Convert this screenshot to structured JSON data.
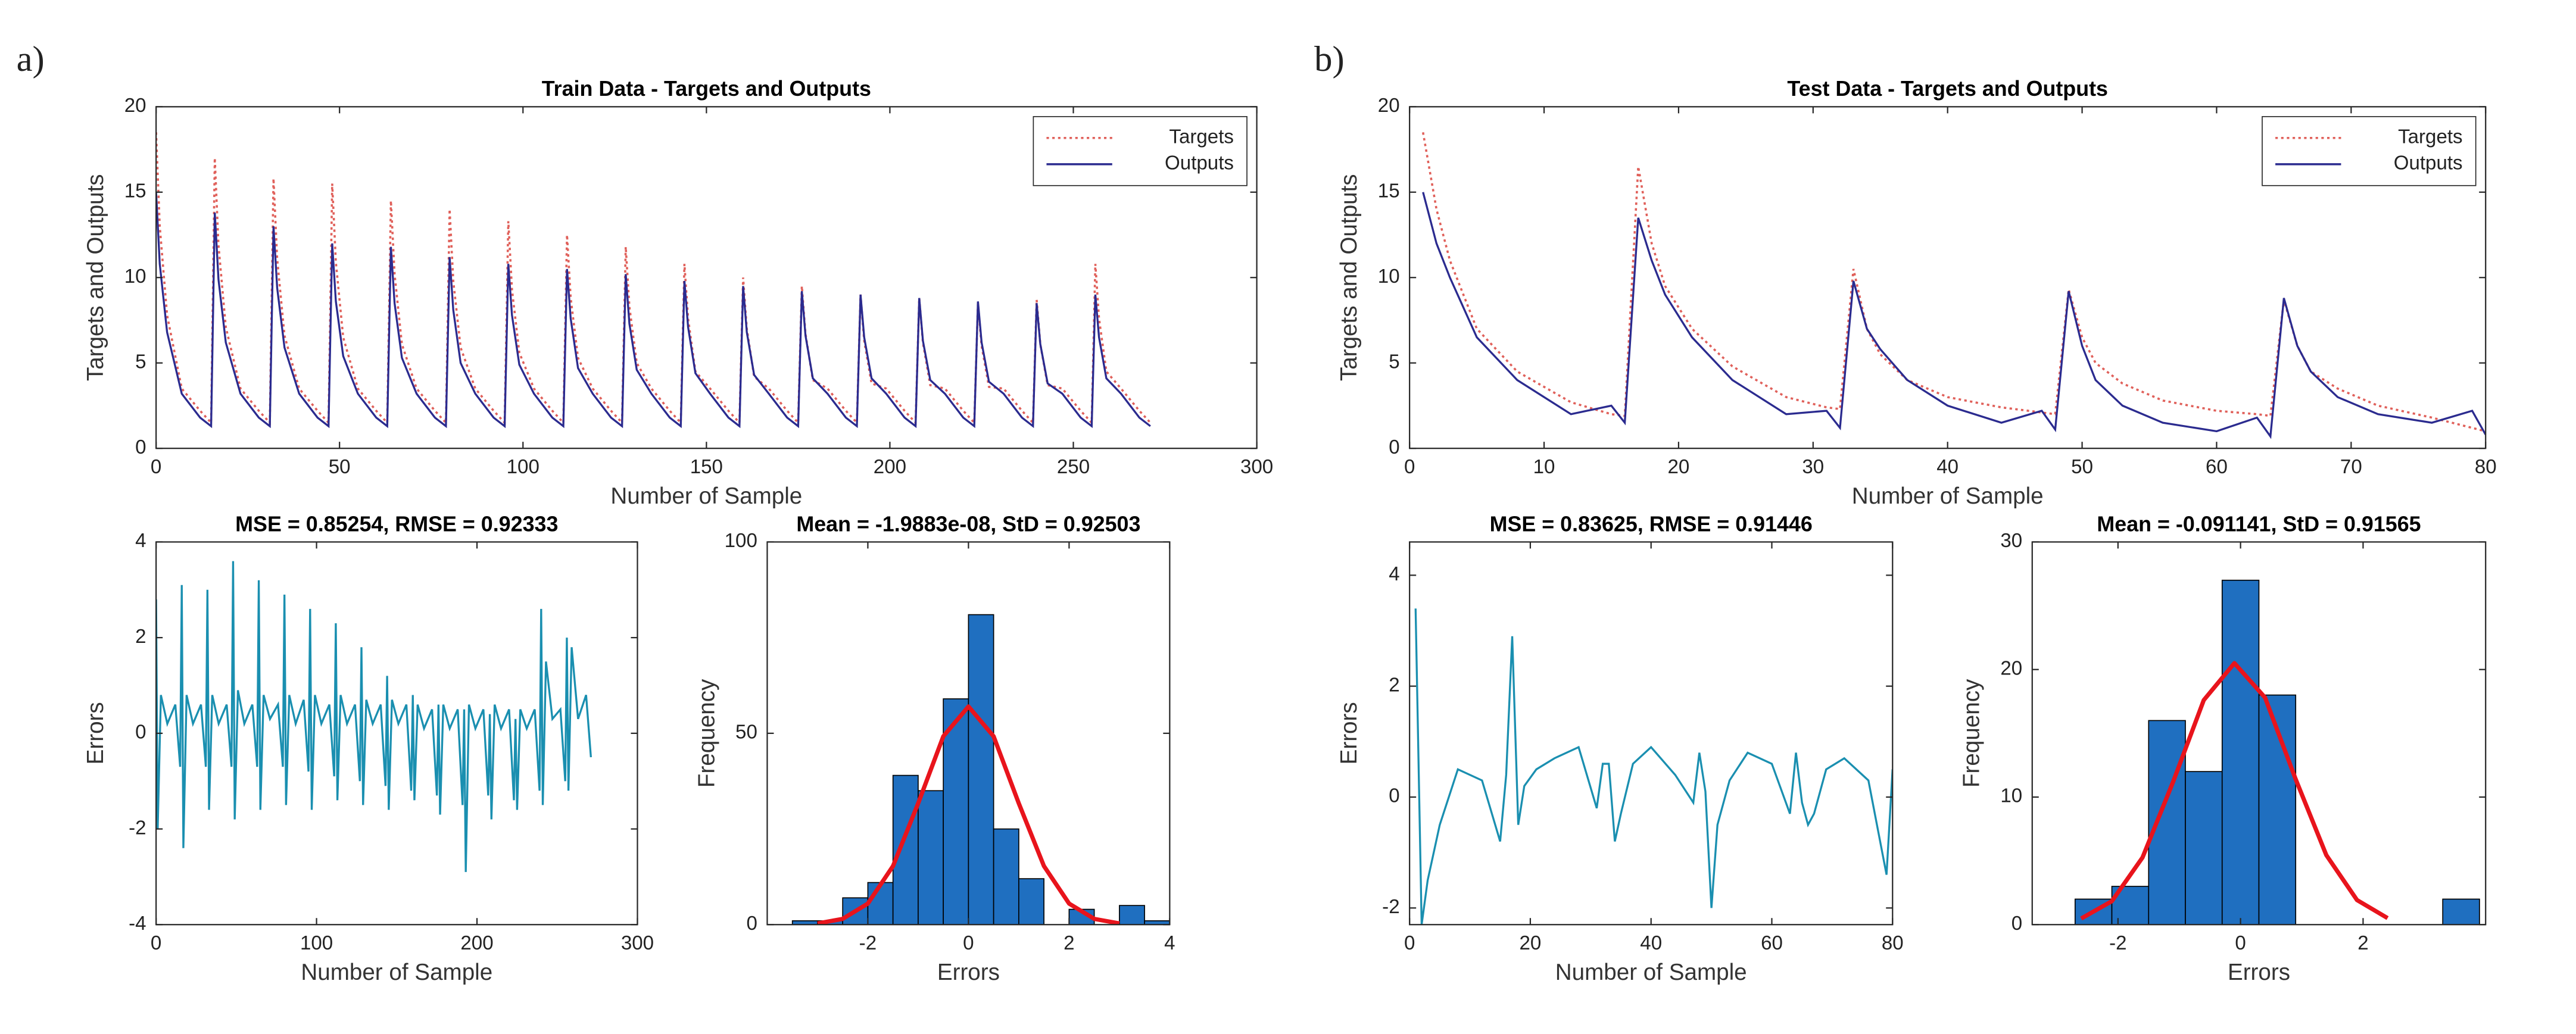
{
  "panel_labels": [
    "a)",
    "b)"
  ],
  "chart_data": [
    {
      "type": "line",
      "title": "Train Data - Targets and Outputs",
      "xlabel": "Number of Sample",
      "ylabel": "Targets and Outputs",
      "xlim": [
        0,
        300
      ],
      "xticks": [
        0,
        50,
        100,
        150,
        200,
        250,
        300
      ],
      "ylim": [
        0,
        20
      ],
      "yticks": [
        0,
        5,
        10,
        15,
        20
      ],
      "legend": "upper right",
      "x": [
        0,
        1,
        3,
        7,
        12,
        15,
        16,
        17,
        19,
        23,
        28,
        31,
        32,
        33,
        35,
        39,
        44,
        47,
        48,
        49,
        51,
        55,
        60,
        63,
        64,
        65,
        67,
        71,
        76,
        79,
        80,
        81,
        83,
        87,
        92,
        95,
        96,
        97,
        99,
        103,
        108,
        111,
        112,
        113,
        115,
        119,
        124,
        127,
        128,
        129,
        131,
        135,
        140,
        143,
        144,
        145,
        147,
        151,
        156,
        159,
        160,
        161,
        163,
        167,
        172,
        175,
        176,
        177,
        179,
        183,
        188,
        191,
        192,
        193,
        195,
        199,
        204,
        207,
        208,
        209,
        211,
        215,
        220,
        223,
        224,
        225,
        227,
        231,
        236,
        239,
        240,
        241,
        243,
        247,
        252,
        255,
        256,
        257,
        259,
        263,
        268,
        271
      ],
      "series": [
        {
          "name": "Targets",
          "color": "#e0605a",
          "style": "dotted",
          "values": [
            18.5,
            13,
            7.8,
            3.5,
            2.2,
            1.5,
            17,
            11.9,
            7.1,
            3.5,
            2.2,
            1.5,
            15.8,
            11.1,
            6.6,
            3.5,
            2.2,
            1.5,
            15.5,
            10.9,
            6.5,
            3.5,
            2.2,
            1.5,
            14.5,
            10.2,
            6.1,
            3.5,
            2.2,
            1.5,
            14,
            9.8,
            5.9,
            3.5,
            2.2,
            1.5,
            13.3,
            9.3,
            5.6,
            3.5,
            2.2,
            1.5,
            12.5,
            8.8,
            5.3,
            3.5,
            2.2,
            1.5,
            11.8,
            8.3,
            5,
            3.5,
            2.2,
            1.5,
            10.8,
            7.6,
            4.5,
            3.5,
            2.2,
            1.5,
            10,
            7,
            4.2,
            3.5,
            2.2,
            1.5,
            9.5,
            6.7,
            4,
            3.5,
            2.2,
            1.5,
            9,
            6.3,
            3.8,
            3.5,
            2.2,
            1.5,
            8.8,
            6.2,
            3.7,
            3.5,
            2.2,
            1.5,
            8.5,
            6,
            3.6,
            3.5,
            2.2,
            1.5,
            8.7,
            6.1,
            3.7,
            3.5,
            2.2,
            1.5,
            10.8,
            7.6,
            4.5,
            3.5,
            2.2,
            1.5
          ]
        },
        {
          "name": "Outputs",
          "color": "#2b2b8f",
          "style": "solid",
          "values": [
            15,
            10.8,
            6.8,
            3.2,
            1.8,
            1.3,
            13.8,
            9.9,
            6.2,
            3.2,
            1.8,
            1.3,
            13,
            9.4,
            5.9,
            3.2,
            1.8,
            1.3,
            12,
            8.6,
            5.4,
            3.2,
            1.8,
            1.3,
            11.8,
            8.5,
            5.3,
            3.2,
            1.8,
            1.3,
            11.2,
            8.1,
            5,
            3.2,
            1.8,
            1.3,
            10.8,
            7.8,
            4.9,
            3.2,
            1.8,
            1.3,
            10.5,
            7.6,
            4.7,
            3.2,
            1.8,
            1.3,
            10.2,
            7.3,
            4.6,
            3.2,
            1.8,
            1.3,
            9.8,
            7.1,
            4.4,
            3.2,
            1.8,
            1.3,
            9.5,
            6.8,
            4.3,
            3.2,
            1.8,
            1.3,
            9.2,
            6.6,
            4.1,
            3.2,
            1.8,
            1.3,
            9,
            6.5,
            4.1,
            3.2,
            1.8,
            1.3,
            8.8,
            6.3,
            4,
            3.2,
            1.8,
            1.3,
            8.6,
            6.2,
            3.9,
            3.2,
            1.8,
            1.3,
            8.5,
            6.1,
            3.8,
            3.2,
            1.8,
            1.3,
            9,
            6.5,
            4.1,
            3.2,
            1.8,
            1.3
          ]
        }
      ]
    },
    {
      "type": "line",
      "title": "MSE = 0.85254, RMSE = 0.92333",
      "xlabel": "Number of Sample",
      "ylabel": "Errors",
      "xlim": [
        0,
        300
      ],
      "xticks": [
        0,
        100,
        200,
        300
      ],
      "ylim": [
        -4,
        4
      ],
      "yticks": [
        -4,
        -2,
        0,
        2,
        4
      ],
      "color": "#1a8fb0",
      "x": [
        0,
        1,
        3,
        7,
        12,
        15,
        16,
        17,
        19,
        23,
        28,
        31,
        32,
        33,
        35,
        39,
        44,
        47,
        48,
        49,
        51,
        55,
        60,
        63,
        64,
        65,
        67,
        71,
        76,
        79,
        80,
        81,
        83,
        87,
        92,
        95,
        96,
        97,
        99,
        103,
        108,
        111,
        112,
        113,
        115,
        119,
        124,
        127,
        128,
        129,
        131,
        135,
        140,
        143,
        144,
        145,
        147,
        151,
        156,
        159,
        160,
        161,
        163,
        167,
        172,
        175,
        176,
        177,
        179,
        183,
        188,
        191,
        192,
        193,
        195,
        199,
        204,
        207,
        208,
        209,
        211,
        215,
        220,
        223,
        224,
        225,
        227,
        231,
        236,
        239,
        240,
        241,
        243,
        247,
        252,
        255,
        256,
        257,
        259,
        263,
        268,
        271
      ],
      "values": [
        2.8,
        -2,
        0.8,
        0.2,
        0.6,
        -0.7,
        3.1,
        -2.4,
        0.8,
        0.2,
        0.6,
        -0.7,
        3,
        -1.6,
        0.8,
        0.2,
        0.6,
        -0.7,
        3.6,
        -1.8,
        0.9,
        0.2,
        0.6,
        -0.7,
        3.2,
        -1.6,
        0.8,
        0.3,
        0.6,
        -0.7,
        2.9,
        -1.5,
        0.8,
        0.2,
        0.7,
        -0.8,
        2.6,
        -1.6,
        0.8,
        0.2,
        0.6,
        -0.9,
        2.3,
        -1.4,
        0.8,
        0.2,
        0.6,
        -1,
        1.8,
        -1.5,
        0.7,
        0.2,
        0.6,
        -1.1,
        1.2,
        -1.6,
        0.7,
        0.2,
        0.6,
        -1.2,
        0.8,
        -1.4,
        0.6,
        0.1,
        0.5,
        -1.3,
        0.6,
        -1.7,
        0.6,
        0.1,
        0.5,
        -1.5,
        0.5,
        -2.9,
        0.6,
        0.1,
        0.5,
        -1.3,
        0.4,
        -1.8,
        0.6,
        0.1,
        0.5,
        -1.4,
        0.3,
        -1.6,
        0.5,
        0.1,
        0.5,
        -1.2,
        2.6,
        -1.5,
        1.5,
        0.3,
        0.5,
        -1,
        2,
        -1.2,
        1.8,
        0.3,
        0.8,
        -0.5
      ]
    },
    {
      "type": "histogram",
      "title": "Mean = -1.9883e-08, StD = 0.92503",
      "xlabel": "Errors",
      "ylabel": "Frequency",
      "xlim": [
        -4,
        4
      ],
      "xticks": [
        -2,
        0,
        2,
        4
      ],
      "ylim": [
        0,
        100
      ],
      "yticks": [
        0,
        50,
        100
      ],
      "color": "#1f6fc0",
      "edgecolor": "#000000",
      "bins": [
        -3.5,
        -3,
        -2.5,
        -2,
        -1.5,
        -1,
        -0.5,
        0,
        0.5,
        1,
        1.5,
        2,
        2.5,
        3,
        3.5,
        4
      ],
      "values": [
        1,
        1,
        7,
        11,
        39,
        35,
        59,
        81,
        25,
        12,
        0,
        4,
        0,
        5,
        1
      ],
      "fit": {
        "color": "#e8141c",
        "x": [
          -3,
          -2.5,
          -2,
          -1.5,
          -1,
          -0.5,
          0,
          0.5,
          1,
          1.5,
          2,
          2.5,
          3
        ],
        "values": [
          0.3,
          1.5,
          5.5,
          15.3,
          31.7,
          49.2,
          57,
          49.2,
          31.7,
          15.3,
          5.5,
          1.5,
          0.3
        ]
      }
    },
    {
      "type": "line",
      "title": "Test Data - Targets and Outputs",
      "xlabel": "Number of Sample",
      "ylabel": "Targets and Outputs",
      "xlim": [
        0,
        80
      ],
      "xticks": [
        0,
        10,
        20,
        30,
        40,
        50,
        60,
        70,
        80
      ],
      "ylim": [
        0,
        20
      ],
      "yticks": [
        0,
        5,
        10,
        15,
        20
      ],
      "legend": "upper right",
      "x": [
        1,
        2,
        3,
        5,
        8,
        12,
        15,
        16,
        17,
        18,
        19,
        21,
        24,
        28,
        31,
        32,
        33,
        34,
        35,
        37,
        40,
        44,
        47,
        48,
        49,
        50,
        51,
        53,
        56,
        60,
        63,
        64,
        65,
        66,
        67,
        69,
        72,
        76,
        79,
        80
      ],
      "series": [
        {
          "name": "Targets",
          "color": "#e0605a",
          "style": "dotted",
          "values": [
            18.5,
            14,
            11,
            7,
            4.5,
            2.7,
            2,
            1.9,
            16.5,
            12,
            9.5,
            7,
            4.8,
            3,
            2.4,
            2.3,
            10.5,
            7,
            5.5,
            4,
            3,
            2.4,
            2.1,
            2,
            9.3,
            6.5,
            5,
            3.8,
            2.8,
            2.2,
            2,
            1.9,
            8.7,
            6,
            4.5,
            3.5,
            2.5,
            1.8,
            1.2,
            1
          ]
        },
        {
          "name": "Outputs",
          "color": "#2b2b8f",
          "style": "solid",
          "values": [
            15,
            12,
            10,
            6.5,
            4,
            2,
            2.5,
            1.5,
            13.5,
            11,
            9,
            6.5,
            4,
            2,
            2.2,
            1.2,
            9.8,
            7,
            5.8,
            4,
            2.5,
            1.5,
            2.2,
            1.1,
            9.2,
            6,
            4,
            2.5,
            1.5,
            1,
            1.8,
            0.7,
            8.8,
            6,
            4.5,
            3,
            2,
            1.5,
            2.2,
            0.8
          ]
        }
      ]
    },
    {
      "type": "line",
      "title": "MSE = 0.83625, RMSE = 0.91446",
      "xlabel": "Number of Sample",
      "ylabel": "Errors",
      "xlim": [
        0,
        80
      ],
      "xticks": [
        0,
        20,
        40,
        60,
        80
      ],
      "ylim": [
        -2.3,
        4.6
      ],
      "yticks": [
        -2,
        0,
        2,
        4
      ],
      "color": "#1a8fb0",
      "x": [
        1,
        2,
        3,
        5,
        8,
        12,
        15,
        16,
        17,
        18,
        19,
        21,
        24,
        28,
        31,
        32,
        33,
        34,
        35,
        37,
        40,
        44,
        47,
        48,
        49,
        50,
        51,
        53,
        56,
        60,
        63,
        64,
        65,
        66,
        67,
        69,
        72,
        76,
        79,
        80
      ],
      "values": [
        3.4,
        -2.3,
        -1.5,
        -0.5,
        0.5,
        0.3,
        -0.8,
        0.4,
        2.9,
        -0.5,
        0.2,
        0.5,
        0.7,
        0.9,
        -0.2,
        0.6,
        0.6,
        -0.8,
        -0.3,
        0.6,
        0.9,
        0.4,
        -0.1,
        0.8,
        0.1,
        -2,
        -0.5,
        0.3,
        0.8,
        0.6,
        -0.3,
        0.8,
        -0.1,
        -0.5,
        -0.3,
        0.5,
        0.7,
        0.3,
        -1.4,
        0.5
      ]
    },
    {
      "type": "histogram",
      "title": "Mean = -0.091141, StD = 0.91565",
      "xlabel": "Errors",
      "ylabel": "Frequency",
      "xlim": [
        -3.4,
        4
      ],
      "xticks": [
        -2,
        0,
        2
      ],
      "ylim": [
        0,
        30
      ],
      "yticks": [
        0,
        10,
        20,
        30
      ],
      "color": "#1f6fc0",
      "edgecolor": "#000000",
      "bins": [
        -2.7,
        -2.1,
        -1.5,
        -0.9,
        -0.3,
        0.3,
        0.9,
        1.5,
        2.1,
        2.7,
        3.3,
        3.9
      ],
      "values": [
        2,
        3,
        16,
        12,
        27,
        18,
        0,
        0,
        0,
        0,
        2
      ],
      "fit": {
        "color": "#e8141c",
        "x": [
          -2.6,
          -2.1,
          -1.6,
          -1.1,
          -0.6,
          -0.1,
          0.4,
          0.9,
          1.4,
          1.9,
          2.4
        ],
        "values": [
          0.48,
          1.84,
          5.26,
          11.2,
          17.6,
          20.5,
          17.8,
          11.4,
          5.45,
          1.93,
          0.51
        ]
      }
    }
  ]
}
